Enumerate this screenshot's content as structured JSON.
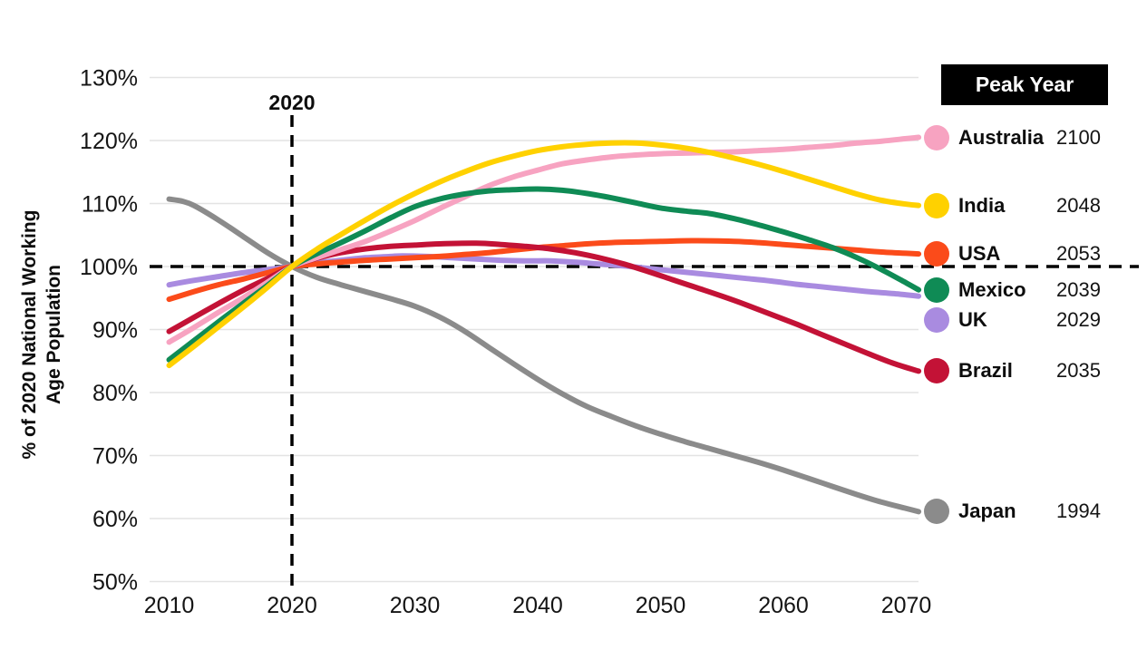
{
  "chart_data": {
    "type": "line",
    "title": "",
    "xlabel": "",
    "ylabel": "% of 2020 National Working Age Population",
    "ylabel_lines": [
      "% of 2020 National Working",
      "Age Population"
    ],
    "ylim": [
      50,
      130
    ],
    "xlim": [
      2010,
      2071
    ],
    "grid": true,
    "legend_position": "right",
    "legend_header": "Peak Year",
    "x_ticks": [
      2010,
      2020,
      2030,
      2040,
      2050,
      2060,
      2070
    ],
    "x_tick_labels": [
      "2010",
      "2020",
      "2030",
      "2040",
      "2050",
      "2060",
      "2070"
    ],
    "y_ticks": [
      50,
      60,
      70,
      80,
      90,
      100,
      110,
      120,
      130
    ],
    "y_tick_labels": [
      "50%",
      "60%",
      "70%",
      "80%",
      "90%",
      "100%",
      "110%",
      "120%",
      "130%"
    ],
    "annotations": {
      "vline": {
        "x": 2020,
        "label": "2020"
      },
      "hline": {
        "y": 100
      }
    },
    "colors": {
      "grid": "#E3E3E3",
      "dashed": "#000000",
      "text": "#141414",
      "background": "#FFFFFF",
      "header_bg": "#000000",
      "header_text": "#FFFFFF"
    },
    "draw_order": [
      "Japan",
      "UK",
      "USA",
      "Brazil",
      "Australia",
      "Mexico",
      "India"
    ],
    "series": [
      {
        "name": "Australia",
        "peak_year": "2100",
        "color": "#F7A3C1",
        "points": [
          [
            2010,
            88
          ],
          [
            2012,
            90.3
          ],
          [
            2014,
            92.7
          ],
          [
            2016,
            95
          ],
          [
            2018,
            97.5
          ],
          [
            2020,
            100
          ],
          [
            2022,
            101.4
          ],
          [
            2024,
            102.7
          ],
          [
            2026,
            104
          ],
          [
            2028,
            105.6
          ],
          [
            2030,
            107.3
          ],
          [
            2032,
            109.2
          ],
          [
            2034,
            111
          ],
          [
            2036,
            112.8
          ],
          [
            2038,
            114.2
          ],
          [
            2040,
            115.3
          ],
          [
            2042,
            116.3
          ],
          [
            2044,
            116.9
          ],
          [
            2046,
            117.4
          ],
          [
            2048,
            117.7
          ],
          [
            2050,
            117.9
          ],
          [
            2052,
            118
          ],
          [
            2054,
            118.1
          ],
          [
            2056,
            118.2
          ],
          [
            2058,
            118.4
          ],
          [
            2060,
            118.6
          ],
          [
            2062,
            118.9
          ],
          [
            2064,
            119.2
          ],
          [
            2066,
            119.6
          ],
          [
            2068,
            119.9
          ],
          [
            2070,
            120.3
          ],
          [
            2071,
            120.5
          ]
        ]
      },
      {
        "name": "India",
        "peak_year": "2048",
        "color": "#FFD100",
        "points": [
          [
            2010,
            84.3
          ],
          [
            2012,
            87.3
          ],
          [
            2014,
            90.4
          ],
          [
            2016,
            93.5
          ],
          [
            2018,
            96.7
          ],
          [
            2020,
            100
          ],
          [
            2022,
            102.7
          ],
          [
            2024,
            105.1
          ],
          [
            2026,
            107.4
          ],
          [
            2028,
            109.6
          ],
          [
            2030,
            111.6
          ],
          [
            2032,
            113.4
          ],
          [
            2034,
            115
          ],
          [
            2036,
            116.4
          ],
          [
            2038,
            117.5
          ],
          [
            2040,
            118.4
          ],
          [
            2042,
            119
          ],
          [
            2044,
            119.4
          ],
          [
            2046,
            119.6
          ],
          [
            2048,
            119.6
          ],
          [
            2050,
            119.3
          ],
          [
            2052,
            118.8
          ],
          [
            2054,
            118.1
          ],
          [
            2056,
            117.2
          ],
          [
            2058,
            116.2
          ],
          [
            2060,
            115.1
          ],
          [
            2062,
            113.9
          ],
          [
            2064,
            112.7
          ],
          [
            2066,
            111.5
          ],
          [
            2068,
            110.5
          ],
          [
            2070,
            109.9
          ],
          [
            2071,
            109.7
          ]
        ]
      },
      {
        "name": "USA",
        "peak_year": "2053",
        "color": "#FB4B1A",
        "points": [
          [
            2010,
            94.8
          ],
          [
            2012,
            96
          ],
          [
            2014,
            97.1
          ],
          [
            2016,
            98
          ],
          [
            2018,
            99
          ],
          [
            2020,
            100
          ],
          [
            2022,
            100.4
          ],
          [
            2024,
            100.7
          ],
          [
            2026,
            101
          ],
          [
            2028,
            101.2
          ],
          [
            2030,
            101.4
          ],
          [
            2032,
            101.6
          ],
          [
            2034,
            101.9
          ],
          [
            2036,
            102.2
          ],
          [
            2038,
            102.6
          ],
          [
            2040,
            103
          ],
          [
            2042,
            103.3
          ],
          [
            2044,
            103.6
          ],
          [
            2046,
            103.8
          ],
          [
            2048,
            103.9
          ],
          [
            2050,
            104
          ],
          [
            2053,
            104.1
          ],
          [
            2056,
            104
          ],
          [
            2058,
            103.8
          ],
          [
            2060,
            103.5
          ],
          [
            2062,
            103.2
          ],
          [
            2064,
            102.9
          ],
          [
            2066,
            102.6
          ],
          [
            2068,
            102.3
          ],
          [
            2070,
            102.1
          ],
          [
            2071,
            102
          ]
        ]
      },
      {
        "name": "Mexico",
        "peak_year": "2039",
        "color": "#0F8B55",
        "points": [
          [
            2010,
            85.2
          ],
          [
            2012,
            88.2
          ],
          [
            2014,
            91.2
          ],
          [
            2016,
            94.1
          ],
          [
            2018,
            97
          ],
          [
            2020,
            100
          ],
          [
            2022,
            102
          ],
          [
            2024,
            103.8
          ],
          [
            2026,
            105.7
          ],
          [
            2028,
            107.7
          ],
          [
            2030,
            109.5
          ],
          [
            2032,
            110.7
          ],
          [
            2034,
            111.5
          ],
          [
            2036,
            112
          ],
          [
            2038,
            112.2
          ],
          [
            2040,
            112.3
          ],
          [
            2042,
            112.1
          ],
          [
            2044,
            111.6
          ],
          [
            2046,
            110.9
          ],
          [
            2048,
            110.1
          ],
          [
            2050,
            109.3
          ],
          [
            2052,
            108.8
          ],
          [
            2054,
            108.4
          ],
          [
            2056,
            107.6
          ],
          [
            2058,
            106.6
          ],
          [
            2060,
            105.5
          ],
          [
            2062,
            104.3
          ],
          [
            2064,
            103
          ],
          [
            2066,
            101.4
          ],
          [
            2068,
            99.5
          ],
          [
            2070,
            97.4
          ],
          [
            2071,
            96.3
          ]
        ]
      },
      {
        "name": "UK",
        "peak_year": "2029",
        "color": "#A98BE0",
        "points": [
          [
            2010,
            97.1
          ],
          [
            2012,
            97.8
          ],
          [
            2014,
            98.4
          ],
          [
            2016,
            99
          ],
          [
            2018,
            99.5
          ],
          [
            2020,
            100
          ],
          [
            2022,
            100.6
          ],
          [
            2024,
            101
          ],
          [
            2026,
            101.4
          ],
          [
            2028,
            101.6
          ],
          [
            2029,
            101.7
          ],
          [
            2031,
            101.6
          ],
          [
            2033,
            101.4
          ],
          [
            2035,
            101.2
          ],
          [
            2037,
            101
          ],
          [
            2039,
            100.9
          ],
          [
            2041,
            100.9
          ],
          [
            2043,
            100.7
          ],
          [
            2045,
            100.4
          ],
          [
            2047,
            100.1
          ],
          [
            2049,
            99.7
          ],
          [
            2051,
            99.3
          ],
          [
            2053,
            98.9
          ],
          [
            2055,
            98.5
          ],
          [
            2057,
            98.1
          ],
          [
            2059,
            97.7
          ],
          [
            2061,
            97.2
          ],
          [
            2063,
            96.8
          ],
          [
            2065,
            96.4
          ],
          [
            2067,
            96
          ],
          [
            2069,
            95.7
          ],
          [
            2071,
            95.3
          ]
        ]
      },
      {
        "name": "Brazil",
        "peak_year": "2035",
        "color": "#C31236",
        "points": [
          [
            2010,
            89.7
          ],
          [
            2012,
            91.9
          ],
          [
            2014,
            94.1
          ],
          [
            2016,
            96.2
          ],
          [
            2018,
            98.1
          ],
          [
            2020,
            100
          ],
          [
            2022,
            101.3
          ],
          [
            2024,
            102.2
          ],
          [
            2026,
            102.8
          ],
          [
            2028,
            103.2
          ],
          [
            2030,
            103.4
          ],
          [
            2032,
            103.6
          ],
          [
            2035,
            103.7
          ],
          [
            2037,
            103.5
          ],
          [
            2039,
            103.2
          ],
          [
            2041,
            102.8
          ],
          [
            2043,
            102.2
          ],
          [
            2045,
            101.4
          ],
          [
            2047,
            100.4
          ],
          [
            2049,
            99.2
          ],
          [
            2051,
            97.9
          ],
          [
            2053,
            96.6
          ],
          [
            2055,
            95.3
          ],
          [
            2057,
            93.9
          ],
          [
            2059,
            92.4
          ],
          [
            2061,
            90.9
          ],
          [
            2063,
            89.3
          ],
          [
            2065,
            87.7
          ],
          [
            2067,
            86.1
          ],
          [
            2069,
            84.6
          ],
          [
            2071,
            83.4
          ]
        ]
      },
      {
        "name": "Japan",
        "peak_year": "1994",
        "color": "#8B8B8B",
        "points": [
          [
            2010,
            110.7
          ],
          [
            2011,
            110.4
          ],
          [
            2012,
            109.7
          ],
          [
            2014,
            107.4
          ],
          [
            2016,
            104.8
          ],
          [
            2018,
            102.2
          ],
          [
            2020,
            100
          ],
          [
            2022,
            98.3
          ],
          [
            2024,
            97.1
          ],
          [
            2026,
            96
          ],
          [
            2028,
            94.9
          ],
          [
            2030,
            93.7
          ],
          [
            2032,
            92
          ],
          [
            2034,
            89.8
          ],
          [
            2036,
            87.2
          ],
          [
            2038,
            84.6
          ],
          [
            2040,
            82.1
          ],
          [
            2042,
            79.8
          ],
          [
            2044,
            77.8
          ],
          [
            2046,
            76.2
          ],
          [
            2048,
            74.7
          ],
          [
            2050,
            73.4
          ],
          [
            2052,
            72.2
          ],
          [
            2054,
            71.1
          ],
          [
            2056,
            70
          ],
          [
            2058,
            68.9
          ],
          [
            2060,
            67.7
          ],
          [
            2062,
            66.4
          ],
          [
            2064,
            65.1
          ],
          [
            2066,
            63.8
          ],
          [
            2068,
            62.6
          ],
          [
            2070,
            61.6
          ],
          [
            2071,
            61.1
          ]
        ]
      }
    ]
  }
}
